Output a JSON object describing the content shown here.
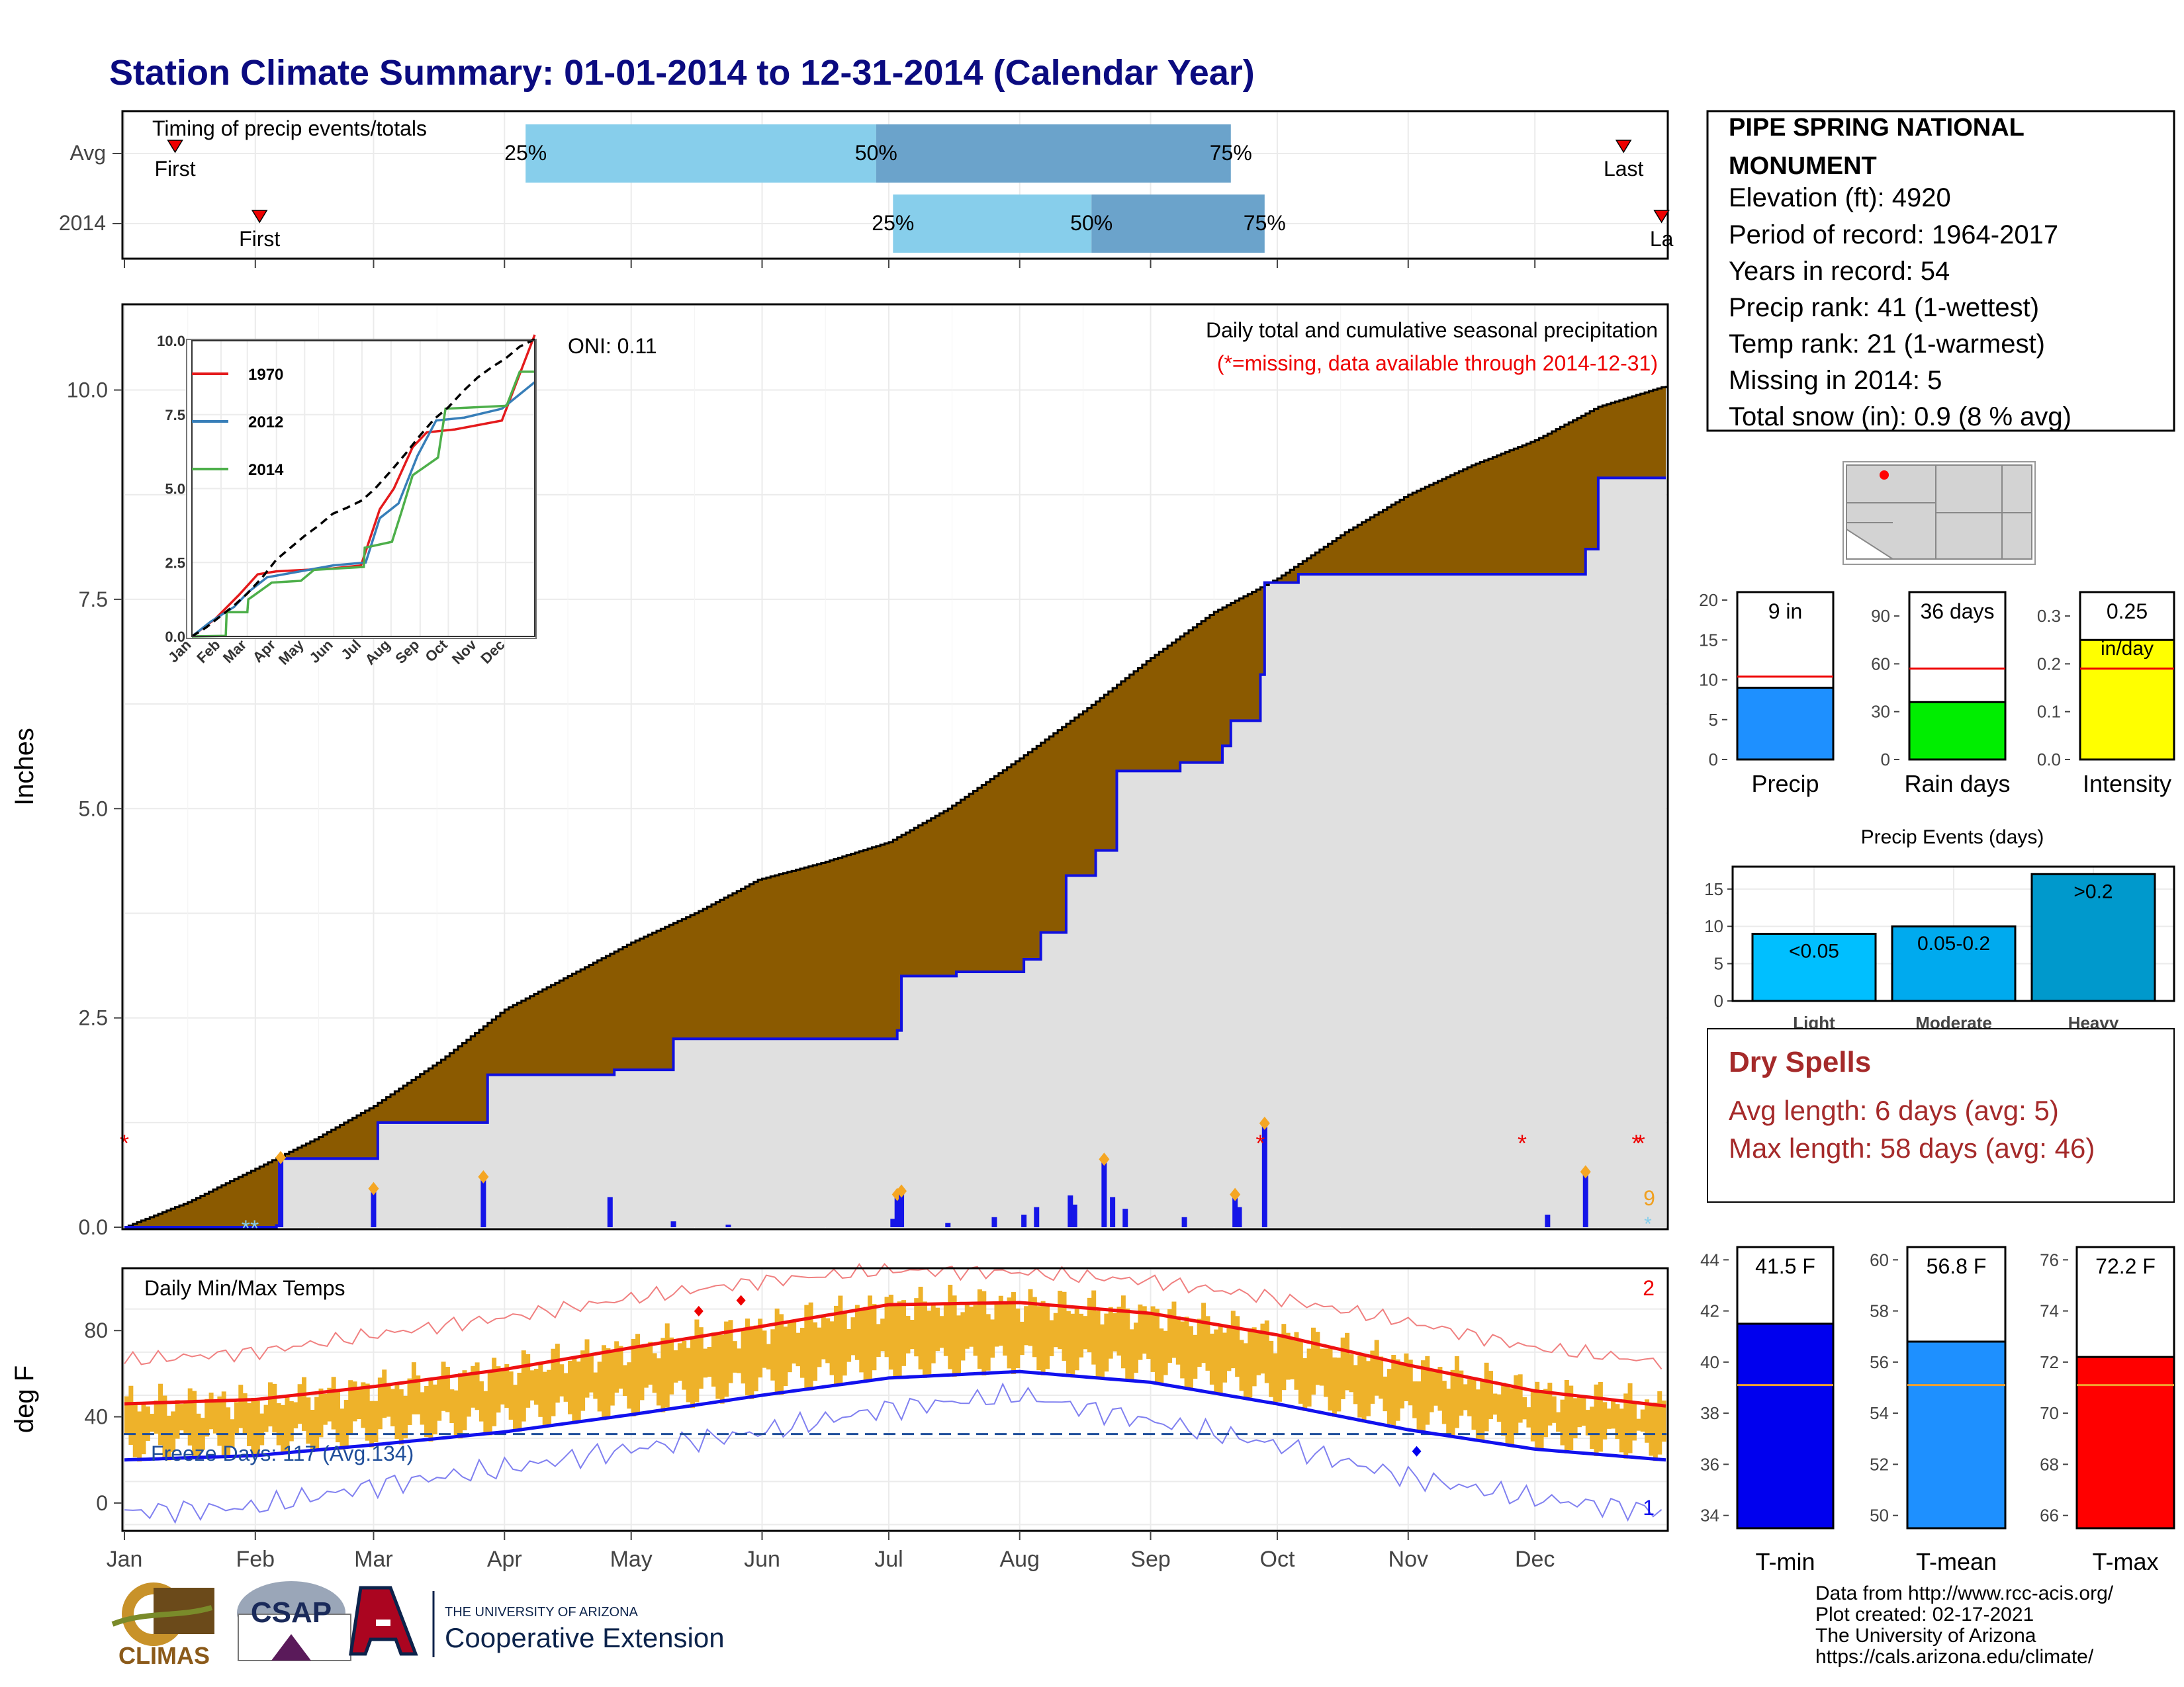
{
  "title": "Station Climate Summary: 01-01-2014 to 12-31-2014 (Calendar Year)",
  "colors": {
    "title": "#0b0b80",
    "cum_avg_fill": "#8b5a00",
    "cum_year_fill": "#e0e0e0",
    "cum_year_line": "#1010e0",
    "timing_light": "#87ceeb",
    "timing_dark": "#6ba3cb",
    "temp_band": "#eeb22a",
    "tmax_line": "#ee1111",
    "tmin_line": "#1111ee",
    "dry_spell": "#a52a2a"
  },
  "chart_data": [
    {
      "type": "timing-bars",
      "label": "Timing of precip events/totals",
      "rows": [
        {
          "name": "Avg",
          "first_label": "First",
          "last_label": "Last",
          "first_doy": 12,
          "last_doy": 355,
          "p25_doy": 95,
          "p50_doy": 178,
          "p75_doy": 262,
          "p25_label": "25%",
          "p50_label": "50%",
          "p75_label": "75%"
        },
        {
          "name": "2014",
          "first_label": "First",
          "last_label": "La",
          "first_doy": 32,
          "last_doy": 364,
          "p25_doy": 182,
          "p50_doy": 229,
          "p75_doy": 270,
          "p25_label": "25%",
          "p50_label": "50%",
          "p75_label": "75%"
        }
      ]
    },
    {
      "type": "area",
      "name": "cumulative precipitation",
      "ylabel": "Inches",
      "yticks": [
        "0.0",
        "2.5",
        "5.0",
        "7.5",
        "10.0"
      ],
      "ylim": [
        0,
        11
      ],
      "title": "Daily total and cumulative seasonal precipitation",
      "subtitle": "(*=missing, data available through 2014-12-31)",
      "oni": "ONI: 0.11",
      "snow_count": "9",
      "avg_cum": [
        [
          0,
          0
        ],
        [
          15,
          0.3
        ],
        [
          31,
          0.7
        ],
        [
          45,
          1.05
        ],
        [
          59,
          1.45
        ],
        [
          75,
          2.0
        ],
        [
          90,
          2.6
        ],
        [
          105,
          3.0
        ],
        [
          120,
          3.4
        ],
        [
          135,
          3.75
        ],
        [
          150,
          4.15
        ],
        [
          165,
          4.35
        ],
        [
          181,
          4.6
        ],
        [
          195,
          5.0
        ],
        [
          212,
          5.6
        ],
        [
          228,
          6.2
        ],
        [
          243,
          6.8
        ],
        [
          258,
          7.35
        ],
        [
          273,
          7.75
        ],
        [
          289,
          8.3
        ],
        [
          304,
          8.75
        ],
        [
          319,
          9.1
        ],
        [
          334,
          9.4
        ],
        [
          349,
          9.8
        ],
        [
          365,
          10.05
        ]
      ],
      "year_cum": [
        [
          0,
          0
        ],
        [
          36,
          0.02
        ],
        [
          37,
          0.82
        ],
        [
          59,
          0.82
        ],
        [
          60,
          1.25
        ],
        [
          85,
          1.25
        ],
        [
          86,
          1.82
        ],
        [
          115,
          1.82
        ],
        [
          116,
          1.88
        ],
        [
          130,
          2.25
        ],
        [
          183,
          2.35
        ],
        [
          184,
          3.0
        ],
        [
          197,
          3.05
        ],
        [
          213,
          3.2
        ],
        [
          217,
          3.52
        ],
        [
          223,
          4.2
        ],
        [
          230,
          4.5
        ],
        [
          235,
          5.45
        ],
        [
          250,
          5.55
        ],
        [
          260,
          5.75
        ],
        [
          262,
          6.05
        ],
        [
          269,
          6.6
        ],
        [
          270,
          7.7
        ],
        [
          278,
          7.8
        ],
        [
          335,
          7.8
        ],
        [
          346,
          8.1
        ],
        [
          349,
          8.95
        ],
        [
          365,
          8.95
        ]
      ],
      "daily_bars": [
        [
          37,
          0.8
        ],
        [
          59,
          0.43
        ],
        [
          85,
          0.57
        ],
        [
          115,
          0.36
        ],
        [
          130,
          0.07
        ],
        [
          143,
          0.03
        ],
        [
          182,
          0.1
        ],
        [
          183,
          0.36
        ],
        [
          184,
          0.4
        ],
        [
          195,
          0.05
        ],
        [
          206,
          0.12
        ],
        [
          213,
          0.15
        ],
        [
          216,
          0.24
        ],
        [
          224,
          0.38
        ],
        [
          225,
          0.27
        ],
        [
          232,
          0.78
        ],
        [
          234,
          0.36
        ],
        [
          237,
          0.22
        ],
        [
          251,
          0.12
        ],
        [
          263,
          0.36
        ],
        [
          264,
          0.24
        ],
        [
          270,
          1.21
        ],
        [
          337,
          0.15
        ],
        [
          346,
          0.63
        ]
      ],
      "highlight_days": [
        37,
        59,
        85,
        183,
        184,
        232,
        263,
        270,
        346
      ],
      "missing_days": [
        0,
        269,
        331,
        358,
        359
      ]
    },
    {
      "type": "line",
      "name": "Daily Min/Max Temps",
      "label": "Daily Min/Max Temps",
      "ylabel": "deg F",
      "yticks": [
        "0",
        "40",
        "80"
      ],
      "ylim": [
        -12,
        108
      ],
      "freeze_label": "Freeze Days: 117 (Avg.134)",
      "freeze_line": 32,
      "corner_top": "2",
      "corner_bottom": "1",
      "avg_max": [
        [
          0,
          46
        ],
        [
          31,
          48
        ],
        [
          59,
          54
        ],
        [
          90,
          62
        ],
        [
          120,
          72
        ],
        [
          151,
          82
        ],
        [
          181,
          92
        ],
        [
          212,
          93
        ],
        [
          243,
          88
        ],
        [
          273,
          78
        ],
        [
          304,
          64
        ],
        [
          334,
          52
        ],
        [
          365,
          45
        ]
      ],
      "avg_min": [
        [
          0,
          20
        ],
        [
          31,
          22
        ],
        [
          59,
          27
        ],
        [
          90,
          33
        ],
        [
          120,
          41
        ],
        [
          151,
          50
        ],
        [
          181,
          58
        ],
        [
          212,
          61
        ],
        [
          243,
          56
        ],
        [
          273,
          46
        ],
        [
          304,
          34
        ],
        [
          334,
          25
        ],
        [
          365,
          20
        ]
      ],
      "record_max": [
        [
          0,
          66
        ],
        [
          31,
          70
        ],
        [
          59,
          78
        ],
        [
          90,
          86
        ],
        [
          120,
          95
        ],
        [
          151,
          103
        ],
        [
          181,
          108
        ],
        [
          212,
          107
        ],
        [
          243,
          103
        ],
        [
          273,
          95
        ],
        [
          304,
          84
        ],
        [
          334,
          72
        ],
        [
          365,
          65
        ]
      ],
      "record_min": [
        [
          0,
          -4
        ],
        [
          31,
          -2
        ],
        [
          59,
          8
        ],
        [
          90,
          16
        ],
        [
          120,
          25
        ],
        [
          151,
          33
        ],
        [
          181,
          44
        ],
        [
          212,
          50
        ],
        [
          243,
          38
        ],
        [
          273,
          27
        ],
        [
          304,
          12
        ],
        [
          334,
          2
        ],
        [
          365,
          -4
        ]
      ],
      "record_hi_days": [
        [
          136,
          89
        ],
        [
          146,
          94
        ]
      ],
      "record_lo_days": [
        [
          306,
          24
        ]
      ],
      "xticks": [
        "Jan",
        "Feb",
        "Mar",
        "Apr",
        "May",
        "Jun",
        "Jul",
        "Aug",
        "Sep",
        "Oct",
        "Nov",
        "Dec"
      ]
    },
    {
      "type": "line",
      "name": "inset cumulative precip",
      "ylim": [
        0,
        10
      ],
      "yticks": [
        "0.0",
        "2.5",
        "5.0",
        "7.5",
        "10.0"
      ],
      "xticks": [
        "Jan",
        "Feb",
        "Mar",
        "Apr",
        "May",
        "Jun",
        "Jul",
        "Aug",
        "Sep",
        "Oct",
        "Nov",
        "Dec"
      ],
      "series": [
        {
          "name": "1970",
          "color": "#e41a1c",
          "values": [
            [
              0,
              0
            ],
            [
              25,
              0.6
            ],
            [
              50,
              1.4
            ],
            [
              70,
              2.1
            ],
            [
              90,
              2.2
            ],
            [
              150,
              2.3
            ],
            [
              180,
              2.4
            ],
            [
              200,
              4.3
            ],
            [
              215,
              5.0
            ],
            [
              235,
              6.4
            ],
            [
              250,
              6.9
            ],
            [
              280,
              7.0
            ],
            [
              330,
              7.3
            ],
            [
              365,
              10.2
            ]
          ]
        },
        {
          "name": "2012",
          "color": "#377eb8",
          "values": [
            [
              0,
              0
            ],
            [
              20,
              0.5
            ],
            [
              45,
              1.0
            ],
            [
              60,
              1.5
            ],
            [
              80,
              2.0
            ],
            [
              150,
              2.4
            ],
            [
              185,
              2.5
            ],
            [
              200,
              4.0
            ],
            [
              220,
              4.5
            ],
            [
              240,
              6.1
            ],
            [
              260,
              7.3
            ],
            [
              290,
              7.4
            ],
            [
              330,
              7.7
            ],
            [
              365,
              8.6
            ]
          ]
        },
        {
          "name": "2014",
          "color": "#4daf4a",
          "values": [
            [
              0,
              0
            ],
            [
              36,
              0.02
            ],
            [
              37,
              0.82
            ],
            [
              59,
              0.82
            ],
            [
              60,
              1.25
            ],
            [
              85,
              1.82
            ],
            [
              116,
              1.88
            ],
            [
              130,
              2.25
            ],
            [
              183,
              2.35
            ],
            [
              184,
              3.0
            ],
            [
              213,
              3.2
            ],
            [
              223,
              4.2
            ],
            [
              235,
              5.45
            ],
            [
              262,
              6.05
            ],
            [
              270,
              7.7
            ],
            [
              335,
              7.8
            ],
            [
              349,
              8.95
            ],
            [
              365,
              8.95
            ]
          ]
        },
        {
          "name": "avg",
          "color": "#000000",
          "values": [
            [
              0,
              0
            ],
            [
              15,
              0.3
            ],
            [
              31,
              0.7
            ],
            [
              45,
              1.05
            ],
            [
              59,
              1.45
            ],
            [
              75,
              2.0
            ],
            [
              90,
              2.6
            ],
            [
              105,
              3.0
            ],
            [
              120,
              3.4
            ],
            [
              135,
              3.75
            ],
            [
              150,
              4.15
            ],
            [
              165,
              4.35
            ],
            [
              181,
              4.6
            ],
            [
              195,
              5.0
            ],
            [
              212,
              5.6
            ],
            [
              228,
              6.2
            ],
            [
              243,
              6.8
            ],
            [
              258,
              7.35
            ],
            [
              273,
              7.75
            ],
            [
              289,
              8.3
            ],
            [
              304,
              8.75
            ],
            [
              319,
              9.1
            ],
            [
              334,
              9.4
            ],
            [
              349,
              9.8
            ],
            [
              365,
              10.05
            ]
          ]
        }
      ]
    },
    {
      "type": "bar",
      "name": "Precip",
      "category": "Precip",
      "value": 9,
      "value_label": "9 in",
      "avg": 10.4,
      "ylim": [
        0,
        21
      ],
      "yticks": [
        "0",
        "5",
        "10",
        "15",
        "20"
      ],
      "color": "#1e90ff"
    },
    {
      "type": "bar",
      "name": "Rain days",
      "category": "Rain days",
      "value": 36,
      "value_label": "36 days",
      "avg": 57,
      "ylim": [
        0,
        105
      ],
      "yticks": [
        "0",
        "30",
        "60",
        "90"
      ],
      "color": "#00ee00"
    },
    {
      "type": "bar",
      "name": "Intensity",
      "category": "Intensity",
      "value": 0.25,
      "value_label": "0.25",
      "value_unit": "in/day",
      "avg": 0.19,
      "ylim": [
        0,
        0.35
      ],
      "yticks": [
        "0.0",
        "0.1",
        "0.2",
        "0.3"
      ],
      "color": "#ffff00"
    },
    {
      "type": "bar",
      "name": "Precip Events",
      "title": "Precip Events (days)",
      "categories": [
        "Light",
        "Moderate",
        "Heavy"
      ],
      "values": [
        9,
        10,
        17
      ],
      "value_labels": [
        "<0.05",
        "0.05-0.2",
        ">0.2"
      ],
      "ylim": [
        0,
        18
      ],
      "yticks": [
        "0",
        "5",
        "10",
        "15"
      ],
      "colors": [
        "#00bfff",
        "#00aaee",
        "#0099cc"
      ]
    },
    {
      "type": "bar",
      "name": "T-min",
      "category": "T-min",
      "value": 41.5,
      "value_label": "41.5 F",
      "avg": 39.1,
      "ylim": [
        33.5,
        44.5
      ],
      "yticks": [
        "34",
        "36",
        "38",
        "40",
        "42",
        "44"
      ],
      "color": "#0000ee"
    },
    {
      "type": "bar",
      "name": "T-mean",
      "category": "T-mean",
      "value": 56.8,
      "value_label": "56.8 F",
      "avg": 55.1,
      "ylim": [
        49.5,
        60.5
      ],
      "yticks": [
        "50",
        "52",
        "54",
        "56",
        "58",
        "60"
      ],
      "color": "#1e90ff"
    },
    {
      "type": "bar",
      "name": "T-max",
      "category": "T-max",
      "value": 72.2,
      "value_label": "72.2 F",
      "avg": 71.1,
      "ylim": [
        65.5,
        76.5
      ],
      "yticks": [
        "66",
        "68",
        "70",
        "72",
        "74",
        "76"
      ],
      "color": "#ff0000"
    }
  ],
  "station": {
    "name_line1": "PIPE SPRING NATIONAL",
    "name_line2": "MONUMENT",
    "elevation": "Elevation (ft): 4920",
    "period": "Period of record: 1964-2017",
    "years": "Years in record: 54",
    "precip_rank": "Precip rank: 41 (1-wettest)",
    "temp_rank": "Temp rank: 21 (1-warmest)",
    "missing": "Missing in 2014: 5",
    "snow": "Total snow (in): 0.9 (8 % avg)"
  },
  "dry_spells": {
    "title": "Dry Spells",
    "avg": "Avg length: 6 days (avg: 5)",
    "max": "Max length: 58 days (avg: 46)"
  },
  "footer": {
    "line1": "Data from http://www.rcc-acis.org/",
    "line2": "Plot created: 02-17-2021",
    "line3": "The University of Arizona",
    "line4": "https://cals.arizona.edu/climate/"
  },
  "logos": {
    "climas": "CLIMAS",
    "csap": "CSAP",
    "ua_small": "THE UNIVERSITY OF ARIZONA",
    "ua_big": "Cooperative Extension"
  }
}
